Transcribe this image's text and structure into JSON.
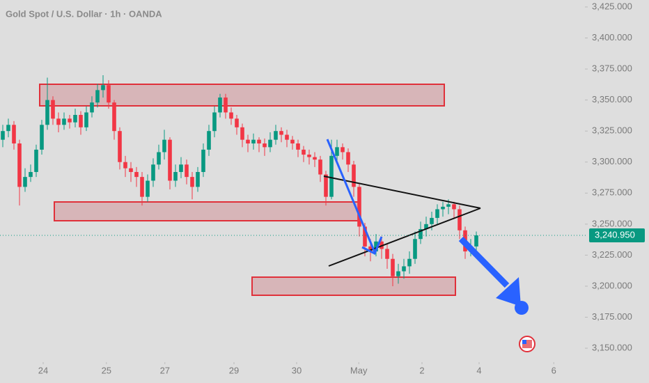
{
  "chart_data": {
    "type": "candlestick",
    "title": "Gold Spot / U.S. Dollar · 1h · OANDA",
    "x": [
      0,
      1,
      2,
      3,
      4,
      5,
      6,
      7,
      8,
      9,
      10,
      11,
      12,
      13,
      14,
      15,
      16,
      17,
      18,
      19,
      20,
      21,
      22,
      23,
      24,
      25,
      26,
      27,
      28,
      29,
      30,
      31,
      32,
      33,
      34,
      35,
      36,
      37,
      38,
      39,
      40,
      41,
      42,
      43,
      44,
      45,
      46,
      47,
      48,
      49,
      50,
      51,
      52,
      53,
      54,
      55,
      56,
      57,
      58,
      59,
      60,
      61,
      62,
      63,
      64,
      65,
      66,
      67,
      68,
      69,
      70,
      71,
      72,
      73,
      74,
      75,
      76,
      77,
      78,
      79,
      80,
      81,
      82,
      83,
      84,
      85
    ],
    "open": [
      3318,
      3325,
      3330,
      3315,
      3280,
      3288,
      3292,
      3310,
      3330,
      3350,
      3335,
      3330,
      3335,
      3332,
      3338,
      3328,
      3340,
      3348,
      3358,
      3362,
      3348,
      3325,
      3300,
      3295,
      3292,
      3288,
      3272,
      3285,
      3298,
      3308,
      3318,
      3285,
      3292,
      3298,
      3288,
      3280,
      3292,
      3310,
      3325,
      3340,
      3352,
      3340,
      3335,
      3328,
      3318,
      3315,
      3318,
      3315,
      3312,
      3318,
      3325,
      3322,
      3318,
      3315,
      3310,
      3306,
      3304,
      3302,
      3290,
      3272,
      3305,
      3312,
      3308,
      3298,
      3280,
      3248,
      3232,
      3228,
      3236,
      3230,
      3222,
      3208,
      3212,
      3216,
      3222,
      3238,
      3246,
      3250,
      3255,
      3262,
      3264,
      3266,
      3262,
      3245,
      3228,
      3232
    ],
    "high": [
      3330,
      3335,
      3333,
      3318,
      3295,
      3298,
      3314,
      3334,
      3368,
      3353,
      3340,
      3340,
      3338,
      3343,
      3341,
      3345,
      3353,
      3363,
      3370,
      3366,
      3350,
      3328,
      3305,
      3300,
      3296,
      3292,
      3290,
      3303,
      3314,
      3326,
      3320,
      3298,
      3304,
      3302,
      3292,
      3296,
      3315,
      3330,
      3345,
      3355,
      3355,
      3344,
      3338,
      3331,
      3322,
      3323,
      3320,
      3319,
      3324,
      3330,
      3328,
      3326,
      3321,
      3318,
      3313,
      3310,
      3308,
      3305,
      3293,
      3318,
      3318,
      3315,
      3311,
      3301,
      3283,
      3251,
      3238,
      3242,
      3240,
      3234,
      3226,
      3218,
      3222,
      3228,
      3244,
      3252,
      3256,
      3260,
      3266,
      3268,
      3270,
      3268,
      3265,
      3248,
      3238,
      3244
    ],
    "low": [
      3312,
      3320,
      3310,
      3265,
      3276,
      3284,
      3288,
      3306,
      3326,
      3330,
      3324,
      3326,
      3327,
      3328,
      3322,
      3325,
      3336,
      3344,
      3352,
      3343,
      3318,
      3294,
      3288,
      3284,
      3280,
      3265,
      3268,
      3280,
      3294,
      3302,
      3278,
      3280,
      3287,
      3282,
      3270,
      3276,
      3288,
      3305,
      3320,
      3336,
      3335,
      3330,
      3322,
      3312,
      3308,
      3310,
      3308,
      3305,
      3308,
      3314,
      3316,
      3312,
      3310,
      3304,
      3300,
      3298,
      3296,
      3284,
      3265,
      3270,
      3300,
      3302,
      3292,
      3272,
      3240,
      3224,
      3220,
      3224,
      3222,
      3214,
      3200,
      3202,
      3206,
      3210,
      3218,
      3234,
      3240,
      3245,
      3250,
      3256,
      3258,
      3254,
      3238,
      3222,
      3224,
      3228
    ],
    "close": [
      3325,
      3330,
      3315,
      3280,
      3288,
      3292,
      3310,
      3330,
      3350,
      3335,
      3330,
      3335,
      3332,
      3338,
      3328,
      3340,
      3348,
      3358,
      3362,
      3348,
      3325,
      3300,
      3295,
      3292,
      3288,
      3272,
      3285,
      3298,
      3308,
      3318,
      3285,
      3292,
      3298,
      3288,
      3280,
      3292,
      3310,
      3325,
      3340,
      3352,
      3340,
      3335,
      3328,
      3318,
      3315,
      3318,
      3315,
      3312,
      3318,
      3325,
      3322,
      3318,
      3315,
      3310,
      3306,
      3304,
      3302,
      3290,
      3272,
      3305,
      3312,
      3308,
      3298,
      3280,
      3248,
      3232,
      3228,
      3236,
      3230,
      3222,
      3208,
      3212,
      3216,
      3222,
      3238,
      3246,
      3250,
      3255,
      3262,
      3264,
      3266,
      3262,
      3245,
      3228,
      3232,
      3240.95
    ],
    "up_color": "#089981",
    "down_color": "#f23645",
    "xlim": [
      -0.5,
      104.5
    ],
    "xticks": [
      {
        "value": 7.25,
        "label": "24"
      },
      {
        "value": 18.6,
        "label": "25"
      },
      {
        "value": 29.1,
        "label": "27"
      },
      {
        "value": 41.5,
        "label": "29"
      },
      {
        "value": 52.75,
        "label": "30"
      },
      {
        "value": 63.9,
        "label": "May"
      },
      {
        "value": 75.25,
        "label": "2"
      },
      {
        "value": 85.5,
        "label": "4"
      },
      {
        "value": 98.9,
        "label": "6"
      }
    ],
    "ylim": [
      3138.8,
      3430.6
    ],
    "yticks": [
      {
        "value": 3150,
        "label": "3,150.000"
      },
      {
        "value": 3175,
        "label": "3,175.000"
      },
      {
        "value": 3200,
        "label": "3,200.000"
      },
      {
        "value": 3225,
        "label": "3,225.000"
      },
      {
        "value": 3250,
        "label": "3,250.000"
      },
      {
        "value": 3275,
        "label": "3,275.000"
      },
      {
        "value": 3300,
        "label": "3,300.000"
      },
      {
        "value": 3325,
        "label": "3,325.000"
      },
      {
        "value": 3350,
        "label": "3,350.000"
      },
      {
        "value": 3375,
        "label": "3,375.000"
      },
      {
        "value": 3400,
        "label": "3,400.000"
      },
      {
        "value": 3425,
        "label": "3,425.000"
      }
    ],
    "last_price": {
      "value": 3240.95,
      "label": "3,240.950"
    },
    "last_price_color": "#089981"
  }
}
